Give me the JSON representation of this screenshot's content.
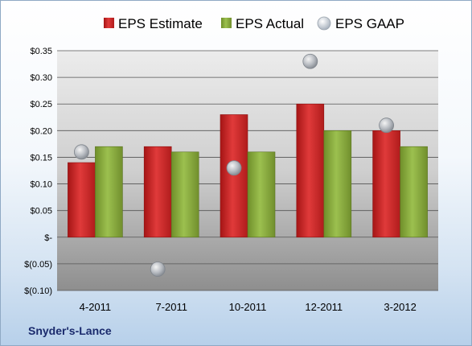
{
  "company": "Snyder's-Lance",
  "colors": {
    "estimate": "#d42a2a",
    "actual": "#8fb041",
    "gaap": "#b0b8c4"
  },
  "chart_data": {
    "type": "bar",
    "categories": [
      "4-2011",
      "7-2011",
      "10-2011",
      "12-2011",
      "3-2012"
    ],
    "series": [
      {
        "name": "EPS Estimate",
        "kind": "bar",
        "values": [
          0.14,
          0.17,
          0.23,
          0.25,
          0.2
        ]
      },
      {
        "name": "EPS Actual",
        "kind": "bar",
        "values": [
          0.17,
          0.16,
          0.16,
          0.2,
          0.17
        ]
      },
      {
        "name": "EPS GAAP",
        "kind": "marker",
        "values": [
          0.16,
          -0.06,
          0.13,
          0.33,
          0.21
        ]
      }
    ],
    "yticks": [
      "$0.35",
      "$0.30",
      "$0.25",
      "$0.20",
      "$0.15",
      "$0.10",
      "$0.05",
      "$-",
      "$(0.05)",
      "$(0.10)"
    ],
    "ylim": [
      -0.1,
      0.35
    ],
    "grid": true,
    "legend": "top"
  }
}
